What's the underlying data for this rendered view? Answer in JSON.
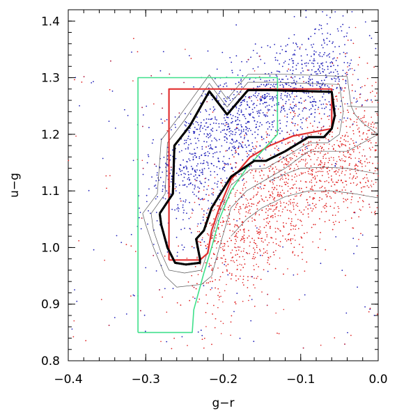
{
  "chart_data": {
    "type": "scatter",
    "title": "",
    "xlabel": "g−r",
    "ylabel": "u−g",
    "xlim": [
      -0.4,
      0.0
    ],
    "ylim": [
      0.8,
      1.42
    ],
    "xticks": [
      -0.4,
      -0.3,
      -0.2,
      -0.1,
      0.0
    ],
    "xtick_labels": [
      "−0.4",
      "−0.3",
      "−0.2",
      "−0.1",
      "0.0"
    ],
    "yticks": [
      0.8,
      0.9,
      1.0,
      1.1,
      1.2,
      1.3,
      1.4
    ],
    "ytick_labels": [
      "0.8",
      "0.9",
      "1.0",
      "1.1",
      "1.2",
      "1.3",
      "1.4"
    ],
    "grid": false,
    "legend": "none",
    "colors": {
      "blue_points": "#1f1fb8",
      "red_points": "#e02020",
      "black_contour": "#000000",
      "thin_contours": "#555555",
      "red_box": "#e23030",
      "green_box": "#3ee08a"
    },
    "series": [
      {
        "kind": "contour",
        "style": "thick-black",
        "points": [
          [
            -0.282,
            1.06
          ],
          [
            -0.265,
            1.095
          ],
          [
            -0.263,
            1.18
          ],
          [
            -0.243,
            1.215
          ],
          [
            -0.218,
            1.276
          ],
          [
            -0.195,
            1.235
          ],
          [
            -0.168,
            1.278
          ],
          [
            -0.14,
            1.278
          ],
          [
            -0.06,
            1.275
          ],
          [
            -0.056,
            1.233
          ],
          [
            -0.06,
            1.21
          ],
          [
            -0.07,
            1.195
          ],
          [
            -0.09,
            1.195
          ],
          [
            -0.12,
            1.17
          ],
          [
            -0.145,
            1.153
          ],
          [
            -0.16,
            1.153
          ],
          [
            -0.19,
            1.125
          ],
          [
            -0.215,
            1.07
          ],
          [
            -0.225,
            1.03
          ],
          [
            -0.235,
            1.015
          ],
          [
            -0.23,
            0.98
          ],
          [
            -0.23,
            0.973
          ],
          [
            -0.248,
            0.97
          ],
          [
            -0.262,
            0.973
          ],
          [
            -0.272,
            1.0
          ],
          [
            -0.28,
            1.04
          ],
          [
            -0.282,
            1.06
          ]
        ]
      },
      {
        "kind": "contour",
        "style": "thin",
        "points": [
          [
            -0.293,
            1.06
          ],
          [
            -0.275,
            1.095
          ],
          [
            -0.272,
            1.185
          ],
          [
            -0.25,
            1.225
          ],
          [
            -0.218,
            1.29
          ],
          [
            -0.195,
            1.248
          ],
          [
            -0.168,
            1.292
          ],
          [
            -0.13,
            1.292
          ],
          [
            -0.05,
            1.288
          ],
          [
            -0.045,
            1.24
          ],
          [
            -0.05,
            1.2
          ],
          [
            -0.065,
            1.185
          ],
          [
            -0.09,
            1.185
          ],
          [
            -0.12,
            1.16
          ],
          [
            -0.145,
            1.14
          ],
          [
            -0.165,
            1.138
          ],
          [
            -0.19,
            1.11
          ],
          [
            -0.205,
            1.06
          ],
          [
            -0.215,
            1.02
          ],
          [
            -0.222,
            0.985
          ],
          [
            -0.228,
            0.96
          ],
          [
            -0.25,
            0.955
          ],
          [
            -0.27,
            0.96
          ],
          [
            -0.28,
            0.99
          ],
          [
            -0.29,
            1.03
          ],
          [
            -0.293,
            1.06
          ]
        ]
      },
      {
        "kind": "contour",
        "style": "thin",
        "points": [
          [
            -0.304,
            1.06
          ],
          [
            -0.285,
            1.095
          ],
          [
            -0.28,
            1.19
          ],
          [
            -0.255,
            1.235
          ],
          [
            -0.218,
            1.305
          ],
          [
            -0.195,
            1.262
          ],
          [
            -0.168,
            1.306
          ],
          [
            -0.12,
            1.306
          ],
          [
            -0.04,
            1.302
          ],
          [
            -0.035,
            1.25
          ],
          [
            -0.03,
            1.235
          ],
          [
            -0.02,
            1.22
          ],
          [
            0.0,
            1.2
          ],
          [
            -0.04,
            1.17
          ],
          [
            -0.09,
            1.17
          ],
          [
            -0.12,
            1.14
          ],
          [
            -0.145,
            1.12
          ],
          [
            -0.17,
            1.1
          ],
          [
            -0.19,
            1.07
          ],
          [
            -0.205,
            1.0
          ],
          [
            -0.215,
            0.95
          ],
          [
            -0.228,
            0.935
          ],
          [
            -0.26,
            0.93
          ],
          [
            -0.275,
            0.95
          ],
          [
            -0.29,
            1.0
          ],
          [
            -0.3,
            1.04
          ],
          [
            -0.304,
            1.06
          ]
        ]
      },
      {
        "kind": "contour",
        "style": "thin",
        "points": [
          [
            -0.14,
            1.118
          ],
          [
            -0.12,
            1.13
          ],
          [
            -0.1,
            1.14
          ],
          [
            -0.07,
            1.142
          ],
          [
            -0.04,
            1.14
          ],
          [
            -0.02,
            1.135
          ],
          [
            0.0,
            1.13
          ]
        ]
      },
      {
        "kind": "contour",
        "style": "thin",
        "points": [
          [
            -0.19,
            1.02
          ],
          [
            -0.17,
            1.05
          ],
          [
            -0.15,
            1.07
          ],
          [
            -0.12,
            1.09
          ],
          [
            -0.09,
            1.1
          ],
          [
            -0.06,
            1.1
          ],
          [
            -0.03,
            1.095
          ],
          [
            -0.01,
            1.09
          ],
          [
            0.0,
            1.088
          ]
        ]
      },
      {
        "kind": "contour",
        "style": "thin",
        "points": [
          [
            -0.04,
            1.25
          ],
          [
            -0.02,
            1.248
          ],
          [
            0.0,
            1.248
          ]
        ]
      },
      {
        "kind": "box",
        "style": "red",
        "points": [
          [
            -0.27,
            0.978
          ],
          [
            -0.27,
            1.28
          ],
          [
            -0.06,
            1.28
          ],
          [
            -0.06,
            1.21
          ],
          [
            -0.08,
            1.205
          ],
          [
            -0.11,
            1.197
          ],
          [
            -0.14,
            1.18
          ],
          [
            -0.165,
            1.16
          ],
          [
            -0.19,
            1.12
          ],
          [
            -0.205,
            1.07
          ],
          [
            -0.215,
            1.03
          ],
          [
            -0.22,
            0.99
          ],
          [
            -0.23,
            0.978
          ],
          [
            -0.27,
            0.978
          ]
        ]
      },
      {
        "kind": "box",
        "style": "green",
        "points": [
          [
            -0.31,
            0.85
          ],
          [
            -0.31,
            1.3
          ],
          [
            -0.13,
            1.3
          ],
          [
            -0.13,
            1.2
          ],
          [
            -0.15,
            1.17
          ],
          [
            -0.17,
            1.14
          ],
          [
            -0.19,
            1.1
          ],
          [
            -0.205,
            1.05
          ],
          [
            -0.215,
            1.0
          ],
          [
            -0.225,
            0.955
          ],
          [
            -0.232,
            0.92
          ],
          [
            -0.238,
            0.89
          ],
          [
            -0.24,
            0.85
          ],
          [
            -0.31,
            0.85
          ]
        ]
      }
    ]
  }
}
